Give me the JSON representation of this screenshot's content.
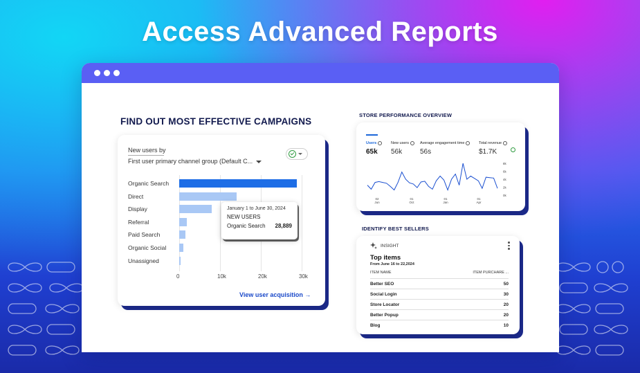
{
  "hero": {
    "title": "Access Advanced Reports"
  },
  "campaigns": {
    "heading": "FIND OUT MOST EFFECTIVE CAMPAIGNS",
    "card_title": "New users by",
    "dimension_select": "First user primary channel group (Default C...",
    "link": "View user acquisition →",
    "tooltip": {
      "date": "January 1 to June 30, 2024",
      "metric": "NEW USERS",
      "channel": "Organic Search",
      "value": "28,889"
    }
  },
  "chart_data": {
    "type": "bar",
    "orientation": "horizontal",
    "categories": [
      "Organic Search",
      "Direct",
      "Display",
      "Referral",
      "Paid Search",
      "Organic Social",
      "Unassigned"
    ],
    "values": [
      28889,
      14000,
      8000,
      1800,
      1500,
      1100,
      300
    ],
    "xlim": [
      0,
      30000
    ],
    "xticks": [
      "0",
      "10k",
      "20k",
      "30k"
    ],
    "xlabel": "",
    "ylabel": "",
    "grid": true,
    "highlight_color": "#1e6ee6",
    "bar_color": "#a9c8f5"
  },
  "performance": {
    "heading": "STORE PERFORMANCE OVERVIEW",
    "metrics": [
      {
        "label": "Users",
        "value": "65k"
      },
      {
        "label": "New users",
        "value": "56k"
      },
      {
        "label": "Average engagement time",
        "value": "56s"
      },
      {
        "label": "Total revenue",
        "value": "$1.7K"
      }
    ],
    "xticks": [
      "02\nJun",
      "01\nOct",
      "01\nJan",
      "01\nApr"
    ],
    "yticks": [
      "8k",
      "6k",
      "4k",
      "2k",
      "0k"
    ],
    "line": [
      2.5,
      1.5,
      3.2,
      3.4,
      3.2,
      3.0,
      2.2,
      1.3,
      3.2,
      5.8,
      4.0,
      3.1,
      2.8,
      1.9,
      3.3,
      3.5,
      2.2,
      1.5,
      3.6,
      4.8,
      3.8,
      1.3,
      4.0,
      5.3,
      2.5,
      8.0,
      4.0,
      4.8,
      4.2,
      3.6,
      1.7,
      4.5,
      4.4,
      4.3,
      1.7
    ],
    "line_color": "#1a4fd0"
  },
  "best_sellers": {
    "heading": "IDENTIFY BEST SELLERS",
    "badge": "INSIGHT",
    "title": "Top items",
    "subtitle": "From June 16 to 22,2024",
    "col_name": "ITEM NAME",
    "col_value": "ITEM PURCHARE ...",
    "rows": [
      {
        "name": "Better SEO",
        "value": "50"
      },
      {
        "name": "Social Login",
        "value": "30"
      },
      {
        "name": "Store Locator",
        "value": "20"
      },
      {
        "name": "Better Popup",
        "value": "20"
      },
      {
        "name": "Blog",
        "value": "10"
      }
    ]
  }
}
